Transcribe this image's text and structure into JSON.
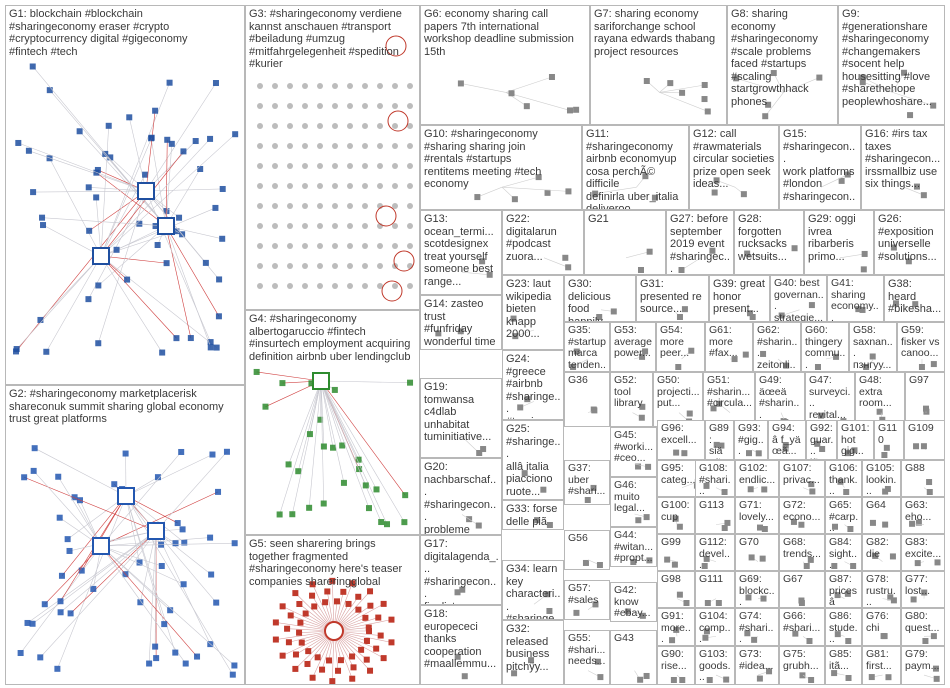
{
  "groups": [
    {
      "id": "g1",
      "label": "G1: blockchain #blockchain\n#sharingeconomy eraser #crypto\n#cryptocurrency digital #gigeconomy\n#fintech #tech",
      "color": "#1f4fa0"
    },
    {
      "id": "g2",
      "label": "G2: #sharingeconomy marketplacerisk\nshareconuk summit sharing global economy\ntrust great platforms",
      "color": "#2357b0"
    },
    {
      "id": "g3",
      "label": "G3: #sharingeconomy verdiene\nkannst anschauen #transport\n#beiladung #umzug\n#mitfahrgelegenheit #spedition\n#kurier",
      "color": "#808080"
    },
    {
      "id": "g4",
      "label": "G4: #sharingeconomy\nalbertogaruccio #fintech\n#insurtech employment acquiring\ndefinition airbnb uber lendingclub",
      "color": "#2e8b2e"
    },
    {
      "id": "g5",
      "label": "G5: seen sharering brings\ntogether fragmented\n#sharingeconomy here's teaser\ncompanies shareringglobal",
      "color": "#c0392b"
    },
    {
      "id": "g6",
      "label": "G6: economy sharing call\npapers 7th international\nworkshop deadline submission\n15th",
      "color": "#d4a017"
    },
    {
      "id": "g7",
      "label": "G7: sharing economy\nsariforchange school\nrayana edwards thabang\nproject resources",
      "color": "#8b6914"
    },
    {
      "id": "g8",
      "label": "G8: sharing\neconomy\n#sharingeconomy\n#scale problems\nfaced #startups\n#scaling\nstartgrowthhack\nphones",
      "color": "#a08030"
    },
    {
      "id": "g9",
      "label": "G9:\n#generationshare\n#sharingeconomy\n#changemakers\n#socent help\nhousesitting #love\n#sharethehope\npeoplewhoshare...",
      "color": "#c71585"
    },
    {
      "id": "g10",
      "label": "G10: #sharingeconomy\n#sharing sharing join\n#rentals #startups\nrentitems meeting #tech\neconomy",
      "color": "#777777"
    },
    {
      "id": "g11",
      "label": "G11: #sharingeconomy\nairbnb economyup\ncosa perchÃ© difficile\ndefinirla uber_italia\ndeliveroo foodora_ita",
      "color": "#777777"
    },
    {
      "id": "g12",
      "label": "G12: call\n#rawmaterials\ncircular societies\nprize open seek\nideas...",
      "color": "#777777"
    },
    {
      "id": "g15",
      "label": "G15: #sharingecon...\nwork platforms\n#london\n#sharingecon...",
      "color": "#777777"
    },
    {
      "id": "g16",
      "label": "G16: #irs tax\ntaxes\n#sharingecon...\nirssmallbiz use\nsix things...",
      "color": "#777777"
    },
    {
      "id": "g13",
      "label": "G13:\nocean_termi...\nscotdesignex\ntreat yourself\nsomeone best\nrange...",
      "color": "#777777"
    },
    {
      "id": "g22",
      "label": "G22:\ndigitalarun\n#podcast\nzuora...",
      "color": "#777777"
    },
    {
      "id": "g21",
      "label": "G21",
      "color": "#777777"
    },
    {
      "id": "g27",
      "label": "G27: before\nseptember\n2019 event\n#sharingec...",
      "color": "#777777"
    },
    {
      "id": "g28",
      "label": "G28:\nforgotten\nrucksacks\nwetsuits...",
      "color": "#777777"
    },
    {
      "id": "g29",
      "label": "G29: oggi\nivrea\nribarberis\nprimo...",
      "color": "#777777"
    },
    {
      "id": "g26",
      "label": "G26:\n#exposition\nuniverselle\n#solutions...",
      "color": "#777777"
    },
    {
      "id": "g14",
      "label": "G14: zasteo\ntrust\n#funfriday\nwonderful time\n#sharingecon...\nhonour...",
      "color": "#777777"
    },
    {
      "id": "g23",
      "label": "G23: laut\nwikipedia\nbieten\nknapp\n2000...",
      "color": "#777777"
    },
    {
      "id": "g30",
      "label": "G30:\ndelicious\nfood happily...",
      "color": "#777777"
    },
    {
      "id": "g31",
      "label": "G31:\npresented re\nsource...",
      "color": "#777777"
    },
    {
      "id": "g39",
      "label": "G39: great\nhonor\npresent...",
      "color": "#777777"
    },
    {
      "id": "g40",
      "label": "G40: best\ngovernan...\nstrategie...",
      "color": "#777777"
    },
    {
      "id": "g41",
      "label": "G41:\nsharing\neconomy...",
      "color": "#777777"
    },
    {
      "id": "g38",
      "label": "G38:\nheard\n#bikesha...",
      "color": "#777777"
    },
    {
      "id": "g24",
      "label": "G24:\n#greece\n#airbnb\n#sharinge...\n#tourism...",
      "color": "#777777"
    },
    {
      "id": "g35",
      "label": "G35:\n#startup\nmarca\ntenden...",
      "color": "#777777"
    },
    {
      "id": "g53",
      "label": "G53:\naverage\npower...",
      "color": "#777777"
    },
    {
      "id": "g54",
      "label": "G54:\nmore\npeer...",
      "color": "#777777"
    },
    {
      "id": "g61",
      "label": "G61:\nmore\n#fax...",
      "color": "#777777"
    },
    {
      "id": "g62",
      "label": "G62:\n#sharin...\nzeitonli...",
      "color": "#777777"
    },
    {
      "id": "g60",
      "label": "G60:\nthingery\ncommu...",
      "color": "#777777"
    },
    {
      "id": "g58",
      "label": "G58:\nsaxnan...\nпзнгуу...",
      "color": "#777777"
    },
    {
      "id": "g59",
      "label": "G59:\nfisker vs\ncanoo...",
      "color": "#777777"
    },
    {
      "id": "g19",
      "label": "G19:\ntomwansa\nc4dlab\nunhabitat\ntuminitiative...",
      "color": "#777777"
    },
    {
      "id": "g36",
      "label": "G36",
      "color": "#777777"
    },
    {
      "id": "g52",
      "label": "G52:\ntool\nlibrary",
      "color": "#777777"
    },
    {
      "id": "g50",
      "label": "G50:\nprojecti...\nput...",
      "color": "#777777"
    },
    {
      "id": "g51",
      "label": "G51:\n#sharin...\n#circula...",
      "color": "#777777"
    },
    {
      "id": "g49",
      "label": "G49:\näœeä\n#sharin...",
      "color": "#777777"
    },
    {
      "id": "g47",
      "label": "G47:\nsurveyci...\nrevital...",
      "color": "#777777"
    },
    {
      "id": "g48",
      "label": "G48:\nextra\nroom...",
      "color": "#777777"
    },
    {
      "id": "g97",
      "label": "G97",
      "color": "#777777"
    },
    {
      "id": "g25",
      "label": "G25:\n#sharinge...\nallâ italia\npiacciono\nruote...",
      "color": "#777777"
    },
    {
      "id": "g45",
      "label": "G45:\n#worki...\n#ceo...",
      "color": "#777777"
    },
    {
      "id": "g96",
      "label": "G96:\nexcell...",
      "color": "#777777"
    },
    {
      "id": "g89",
      "label": "G89:\nsiä oã",
      "color": "#777777"
    },
    {
      "id": "g93",
      "label": "G93:\n#gig...\nnorm...",
      "color": "#777777"
    },
    {
      "id": "g94",
      "label": "G94:\nâ f_yä\nœã...",
      "color": "#777777"
    },
    {
      "id": "g92",
      "label": "G92:\nguar...\niã...",
      "color": "#777777"
    },
    {
      "id": "g101",
      "label": "G101:\nhot\ngig...",
      "color": "#777777"
    },
    {
      "id": "g110",
      "label": "G110",
      "color": "#777777"
    },
    {
      "id": "g109",
      "label": "G109",
      "color": "#777777"
    },
    {
      "id": "g20",
      "label": "G20:\nnachbarschaf...\n#sharingecon...\nprobleme\nunserer...",
      "color": "#777777"
    },
    {
      "id": "g37",
      "label": "G37:\nuber\n#shari...",
      "color": "#777777"
    },
    {
      "id": "g46",
      "label": "G46:\nmuito\nlegal...",
      "color": "#777777"
    },
    {
      "id": "g95",
      "label": "G95:\ncateg...",
      "color": "#777777"
    },
    {
      "id": "g108",
      "label": "G108:\n#shari...",
      "color": "#777777"
    },
    {
      "id": "g102",
      "label": "G102:\nendlic...",
      "color": "#777777"
    },
    {
      "id": "g107",
      "label": "G107:\nprivac...",
      "color": "#777777"
    },
    {
      "id": "g106",
      "label": "G106:\nthank...",
      "color": "#777777"
    },
    {
      "id": "g105",
      "label": "G105:\nlookin...",
      "color": "#777777"
    },
    {
      "id": "g88",
      "label": "G88",
      "color": "#777777"
    },
    {
      "id": "g33",
      "label": "G33: forse\ndelle piã\nbelle\ntestimoni...",
      "color": "#777777"
    },
    {
      "id": "g100",
      "label": "G100:\ncup",
      "color": "#777777"
    },
    {
      "id": "g113",
      "label": "G113",
      "color": "#777777"
    },
    {
      "id": "g71",
      "label": "G71:\nlovely...",
      "color": "#777777"
    },
    {
      "id": "g72",
      "label": "G72:\necono...",
      "color": "#777777"
    },
    {
      "id": "g65",
      "label": "G65:\n#carp...",
      "color": "#777777"
    },
    {
      "id": "g64",
      "label": "G64",
      "color": "#777777"
    },
    {
      "id": "g63",
      "label": "G63:\neho...",
      "color": "#777777"
    },
    {
      "id": "g17",
      "label": "G17:\ndigitalagenda_...\n#sharingecon...\nfinalists\nwinnowsoluti...",
      "color": "#777777"
    },
    {
      "id": "g56",
      "label": "G56",
      "color": "#777777"
    },
    {
      "id": "g44",
      "label": "G44:\n#witan...\n#propt...",
      "color": "#777777"
    },
    {
      "id": "g99",
      "label": "G99",
      "color": "#777777"
    },
    {
      "id": "g112",
      "label": "G112:\ndevel...",
      "color": "#777777"
    },
    {
      "id": "g70",
      "label": "G70",
      "color": "#777777"
    },
    {
      "id": "g68",
      "label": "G68:\ntrends...",
      "color": "#777777"
    },
    {
      "id": "g84",
      "label": "G84:\nsight...",
      "color": "#777777"
    },
    {
      "id": "g82",
      "label": "G82:\ndie",
      "color": "#777777"
    },
    {
      "id": "g83",
      "label": "G83:\nexcite...",
      "color": "#777777"
    },
    {
      "id": "g34",
      "label": "G34: learn\nkey\ncharacteri...\n#sharinge...",
      "color": "#777777"
    },
    {
      "id": "g57",
      "label": "G57:\n#sales",
      "color": "#777777"
    },
    {
      "id": "g42",
      "label": "G42:\nknow\n#ebay...",
      "color": "#777777"
    },
    {
      "id": "g98",
      "label": "G98",
      "color": "#777777"
    },
    {
      "id": "g111",
      "label": "G111",
      "color": "#777777"
    },
    {
      "id": "g69",
      "label": "G69:\nblockc...",
      "color": "#777777"
    },
    {
      "id": "g67",
      "label": "G67",
      "color": "#777777"
    },
    {
      "id": "g87",
      "label": "G87:\npricesâ",
      "color": "#777777"
    },
    {
      "id": "g78",
      "label": "G78:\nrustru...",
      "color": "#777777"
    },
    {
      "id": "g77",
      "label": "G77:\nlost...",
      "color": "#777777"
    },
    {
      "id": "g18",
      "label": "G18:\neuropececi\nthanks\ncooperation\n#maallemmu...",
      "color": "#777777"
    },
    {
      "id": "g32",
      "label": "G32:\nreleased\nbusiness\npitchÿy...",
      "color": "#777777"
    },
    {
      "id": "g55",
      "label": "G55:\n#shari...\nneeds...",
      "color": "#777777"
    },
    {
      "id": "g43",
      "label": "G43",
      "color": "#777777"
    },
    {
      "id": "g91",
      "label": "G91:\nmore...",
      "color": "#777777"
    },
    {
      "id": "g104",
      "label": "G104:\ncomp...",
      "color": "#777777"
    },
    {
      "id": "g74",
      "label": "G74:\n#shari...",
      "color": "#777777"
    },
    {
      "id": "g66",
      "label": "G66:\n#shari...",
      "color": "#777777"
    },
    {
      "id": "g86",
      "label": "G86:\nstude...",
      "color": "#777777"
    },
    {
      "id": "g76",
      "label": "G76:\nchi",
      "color": "#777777"
    },
    {
      "id": "g80",
      "label": "G80:\nquest...",
      "color": "#777777"
    },
    {
      "id": "g90",
      "label": "G90:\nrise...",
      "color": "#777777"
    },
    {
      "id": "g103",
      "label": "G103:\ngoods...",
      "color": "#777777"
    },
    {
      "id": "g73",
      "label": "G73:\n#idea...",
      "color": "#777777"
    },
    {
      "id": "g75",
      "label": "G75:\ngrubh...",
      "color": "#777777"
    },
    {
      "id": "g85",
      "label": "G85:\nitã...",
      "color": "#777777"
    },
    {
      "id": "g81",
      "label": "G81:\nfirst...",
      "color": "#777777"
    },
    {
      "id": "g79",
      "label": "G79:\npaym...",
      "color": "#777777"
    }
  ]
}
